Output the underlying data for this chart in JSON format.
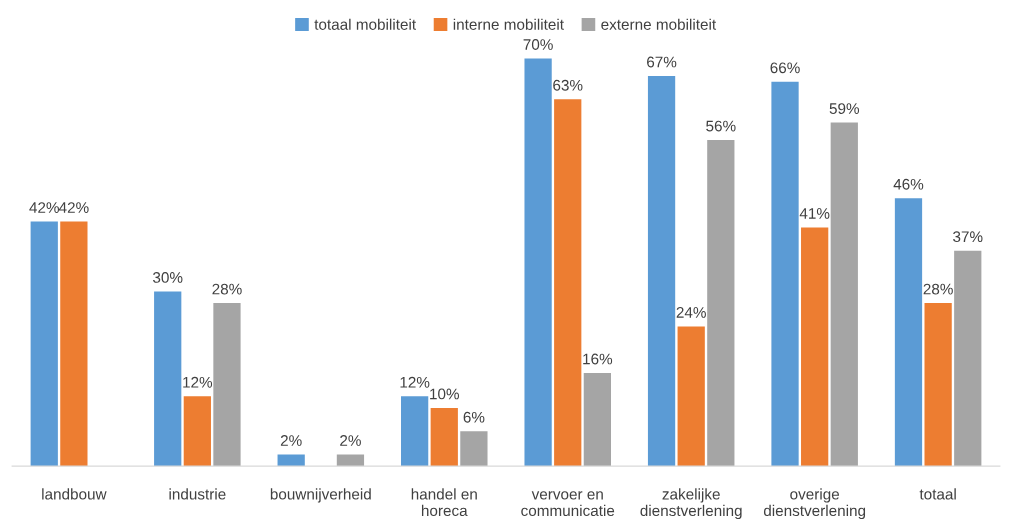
{
  "chart_data": {
    "type": "bar",
    "categories": [
      "landbouw",
      "industrie",
      "bouwnijverheid",
      "handel en\nhoreca",
      "vervoer en\ncommunicatie",
      "zakelijke\ndienstverlening",
      "overige\ndienstverlening",
      "totaal"
    ],
    "series": [
      {
        "name": "totaal mobiliteit",
        "color": "#5b9bd5",
        "values": [
          42,
          30,
          2,
          12,
          70,
          67,
          66,
          46
        ],
        "value_labels": [
          "42%",
          "30%",
          "2%",
          "12%",
          "70%",
          "67%",
          "66%",
          "46%"
        ]
      },
      {
        "name": "interne mobiliteit",
        "color": "#ed7d31",
        "values": [
          42,
          12,
          null,
          10,
          63,
          24,
          41,
          28
        ],
        "value_labels": [
          "42%",
          "12%",
          null,
          "10%",
          "63%",
          "24%",
          "41%",
          "28%"
        ]
      },
      {
        "name": "externe mobiliteit",
        "color": "#a5a5a5",
        "values": [
          null,
          28,
          2,
          6,
          16,
          56,
          59,
          37
        ],
        "value_labels": [
          null,
          "28%",
          "2%",
          "6%",
          "16%",
          "56%",
          "59%",
          "37%"
        ]
      }
    ],
    "legend": "top",
    "grid": false
  }
}
